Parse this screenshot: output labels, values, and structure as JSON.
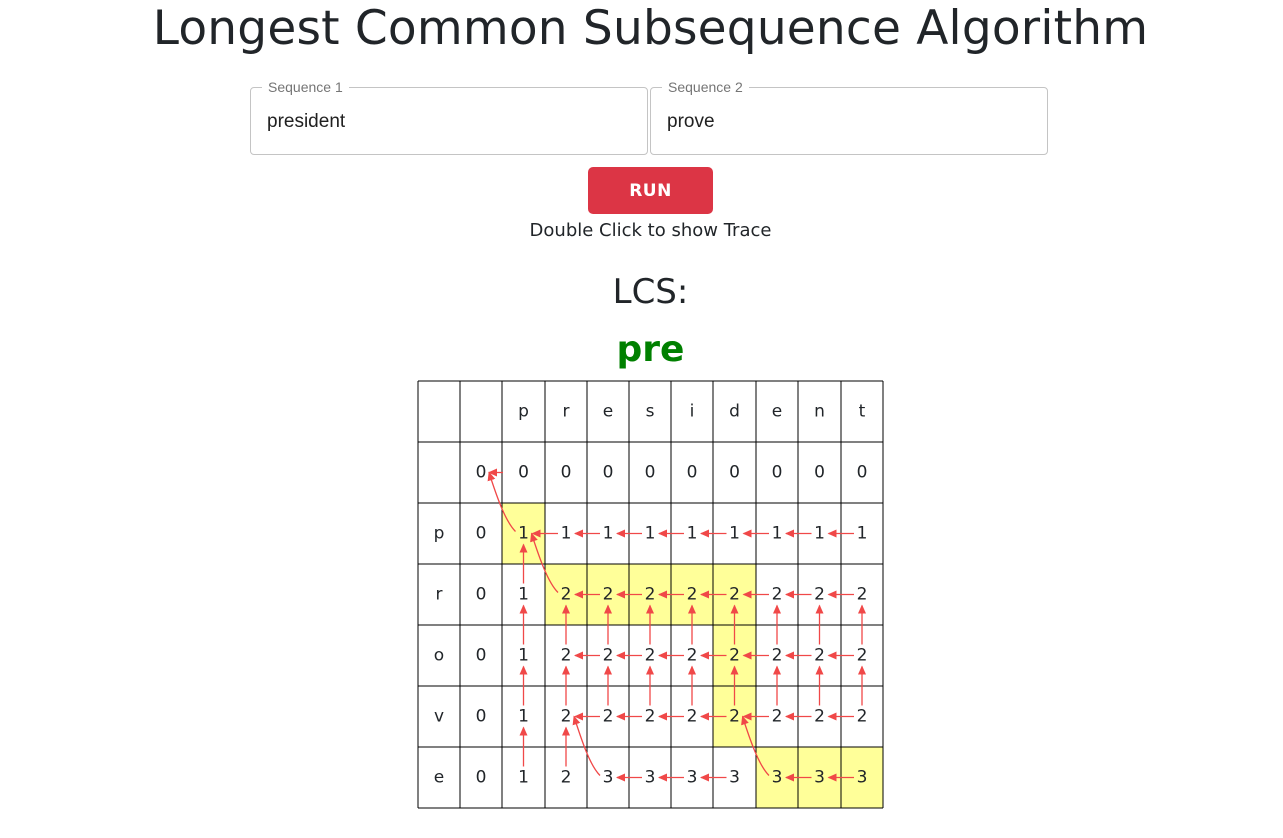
{
  "title": "Longest Common Subsequence Algorithm",
  "inputs": {
    "seq1": {
      "label": "Sequence 1",
      "value": "president"
    },
    "seq2": {
      "label": "Sequence 2",
      "value": "prove"
    }
  },
  "run_label": "RUN",
  "hint": "Double Click to show Trace",
  "result": {
    "label": "LCS:",
    "value": "pre"
  },
  "colors": {
    "arrow": "#f04848",
    "highlight": "#ffff99",
    "result": "#008000",
    "button": "#dc3545"
  },
  "table": {
    "columns": [
      "p",
      "r",
      "e",
      "s",
      "i",
      "d",
      "e",
      "n",
      "t"
    ],
    "rows": [
      "p",
      "r",
      "o",
      "v",
      "e"
    ],
    "values": [
      [
        0,
        0,
        0,
        0,
        0,
        0,
        0,
        0,
        0,
        0
      ],
      [
        0,
        1,
        1,
        1,
        1,
        1,
        1,
        1,
        1,
        1
      ],
      [
        0,
        1,
        2,
        2,
        2,
        2,
        2,
        2,
        2,
        2
      ],
      [
        0,
        1,
        2,
        2,
        2,
        2,
        2,
        2,
        2,
        2
      ],
      [
        0,
        1,
        2,
        2,
        2,
        2,
        2,
        2,
        2,
        2
      ],
      [
        0,
        1,
        2,
        3,
        3,
        3,
        3,
        3,
        3,
        3
      ]
    ],
    "highlighted": [
      [
        1,
        1
      ],
      [
        2,
        2
      ],
      [
        2,
        3
      ],
      [
        2,
        4
      ],
      [
        2,
        5
      ],
      [
        2,
        6
      ],
      [
        3,
        6
      ],
      [
        4,
        6
      ],
      [
        5,
        7
      ],
      [
        5,
        8
      ],
      [
        5,
        9
      ]
    ],
    "left_arrows": [
      [
        0,
        0
      ],
      [
        1,
        2
      ],
      [
        1,
        3
      ],
      [
        1,
        4
      ],
      [
        1,
        5
      ],
      [
        1,
        6
      ],
      [
        1,
        7
      ],
      [
        1,
        8
      ],
      [
        1,
        9
      ],
      [
        2,
        3
      ],
      [
        2,
        4
      ],
      [
        2,
        5
      ],
      [
        2,
        6
      ],
      [
        2,
        7
      ],
      [
        2,
        8
      ],
      [
        2,
        9
      ],
      [
        3,
        3
      ],
      [
        3,
        4
      ],
      [
        3,
        5
      ],
      [
        3,
        6
      ],
      [
        3,
        7
      ],
      [
        3,
        8
      ],
      [
        3,
        9
      ],
      [
        4,
        3
      ],
      [
        4,
        4
      ],
      [
        4,
        5
      ],
      [
        4,
        6
      ],
      [
        4,
        7
      ],
      [
        4,
        8
      ],
      [
        4,
        9
      ],
      [
        5,
        4
      ],
      [
        5,
        5
      ],
      [
        5,
        6
      ],
      [
        5,
        8
      ],
      [
        5,
        9
      ]
    ],
    "up_arrows": [
      [
        2,
        1
      ],
      [
        3,
        1
      ],
      [
        3,
        2
      ],
      [
        3,
        3
      ],
      [
        3,
        4
      ],
      [
        3,
        5
      ],
      [
        3,
        6
      ],
      [
        3,
        7
      ],
      [
        3,
        8
      ],
      [
        3,
        9
      ],
      [
        4,
        1
      ],
      [
        4,
        2
      ],
      [
        4,
        3
      ],
      [
        4,
        4
      ],
      [
        4,
        5
      ],
      [
        4,
        6
      ],
      [
        4,
        7
      ],
      [
        4,
        8
      ],
      [
        4,
        9
      ],
      [
        5,
        1
      ],
      [
        5,
        2
      ]
    ],
    "diag_arrows": [
      [
        1,
        1
      ],
      [
        2,
        2
      ],
      [
        5,
        3
      ],
      [
        5,
        7
      ]
    ]
  }
}
